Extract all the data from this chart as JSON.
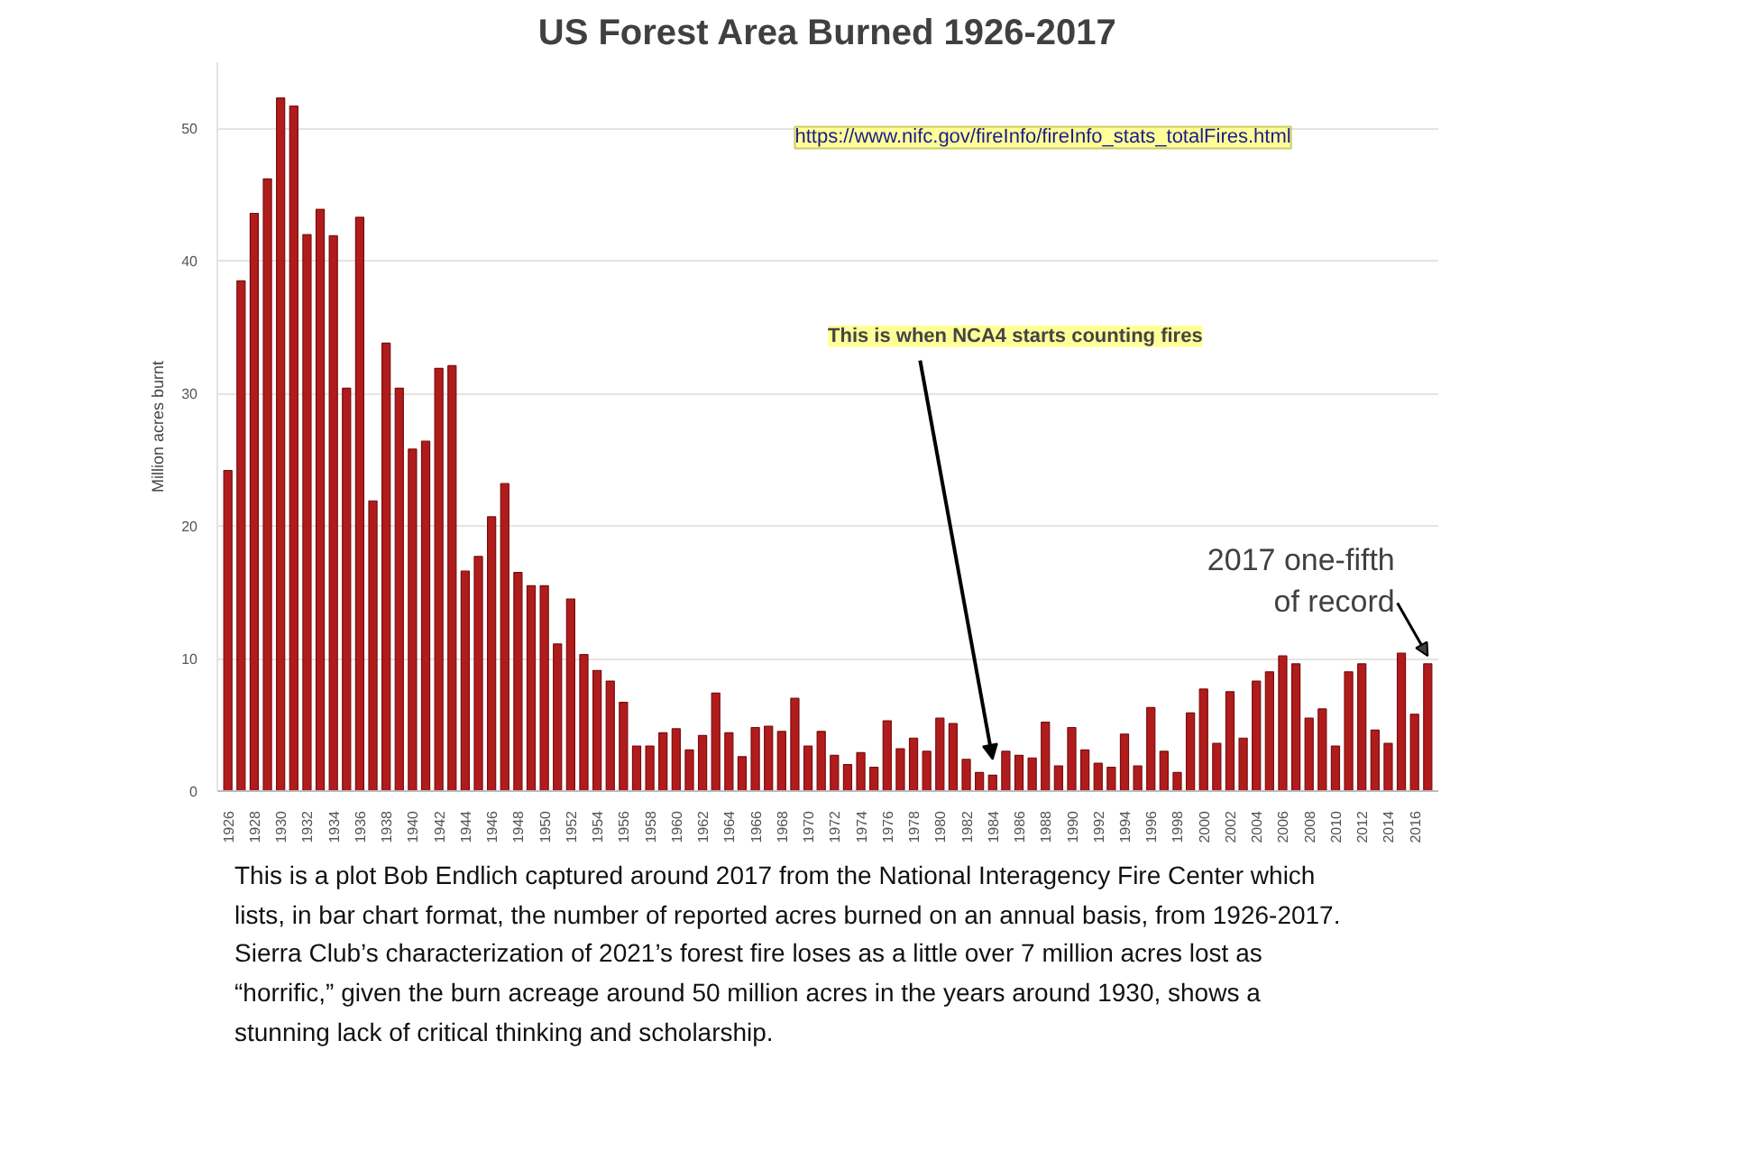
{
  "chart_data": {
    "type": "bar",
    "title": "US Forest Area Burned 1926-2017",
    "ylabel": "Million acres burnt",
    "categories": [
      "1926",
      null,
      "1928",
      null,
      "1930",
      null,
      "1932",
      null,
      "1934",
      null,
      "1936",
      null,
      "1938",
      null,
      "1940",
      null,
      "1942",
      null,
      "1944",
      null,
      "1946",
      null,
      "1948",
      null,
      "1950",
      null,
      "1952",
      null,
      "1954",
      null,
      "1956",
      null,
      "1958",
      null,
      "1960",
      null,
      "1962",
      null,
      "1964",
      null,
      "1966",
      null,
      "1968",
      null,
      "1970",
      null,
      "1972",
      null,
      "1974",
      null,
      "1976",
      null,
      "1978",
      null,
      "1980",
      null,
      "1982",
      null,
      "1984",
      null,
      "1986",
      null,
      "1988",
      null,
      "1990",
      null,
      "1992",
      null,
      "1994",
      null,
      "1996",
      null,
      "1998",
      null,
      "2000",
      null,
      "2002",
      null,
      "2004",
      null,
      "2006",
      null,
      "2008",
      null,
      "2010",
      null,
      "2012",
      null,
      "2014",
      null,
      "2016",
      null
    ],
    "values": [
      24.2,
      38.5,
      43.6,
      46.2,
      52.3,
      51.7,
      42.0,
      43.9,
      41.9,
      30.4,
      43.3,
      21.9,
      33.8,
      30.4,
      25.8,
      26.4,
      31.9,
      32.1,
      16.6,
      17.7,
      20.7,
      23.2,
      16.5,
      15.5,
      15.5,
      11.1,
      14.5,
      10.3,
      9.1,
      8.3,
      6.7,
      3.4,
      3.4,
      4.4,
      4.7,
      3.1,
      4.2,
      7.4,
      4.4,
      2.6,
      4.8,
      4.9,
      4.5,
      7.0,
      3.4,
      4.5,
      2.7,
      2.0,
      2.9,
      1.8,
      5.3,
      3.2,
      4.0,
      3.0,
      5.5,
      5.1,
      2.4,
      1.4,
      1.2,
      3.0,
      2.7,
      2.5,
      5.2,
      1.9,
      4.8,
      3.1,
      2.1,
      1.8,
      4.3,
      1.9,
      6.3,
      3.0,
      1.4,
      5.9,
      7.7,
      3.6,
      7.5,
      4.0,
      8.3,
      9.0,
      10.2,
      9.6,
      5.5,
      6.2,
      3.4,
      9.0,
      9.6,
      4.6,
      3.6,
      10.4,
      5.8,
      9.6
    ],
    "color": "#b01c1c",
    "ylim": [
      0,
      55
    ],
    "yticks": [
      0,
      10,
      20,
      30,
      40,
      50
    ],
    "grid": "y",
    "annotations": [
      "https://www.nifc.gov/fireInfo/fireInfo_stats_totalFires.html",
      {
        "text": "This is when NCA4 starts counting fires",
        "x": "1984",
        "y": 1.2
      },
      "2017 one-fifth\nof record",
      "This is a plot Bob Endlich captured around 2017 from the National Interagency Fire Center which lists, in bar chart format, the number of reported acres burned on an annual basis, from 1926-2017.  Sierra Club’s characterization of 2021’s forest fire loses as a little over 7 million acres lost as “horrific,” given the burn acreage around 50 million acres in the years around 1930, shows a stunning lack of critical thinking and scholarship."
    ]
  }
}
